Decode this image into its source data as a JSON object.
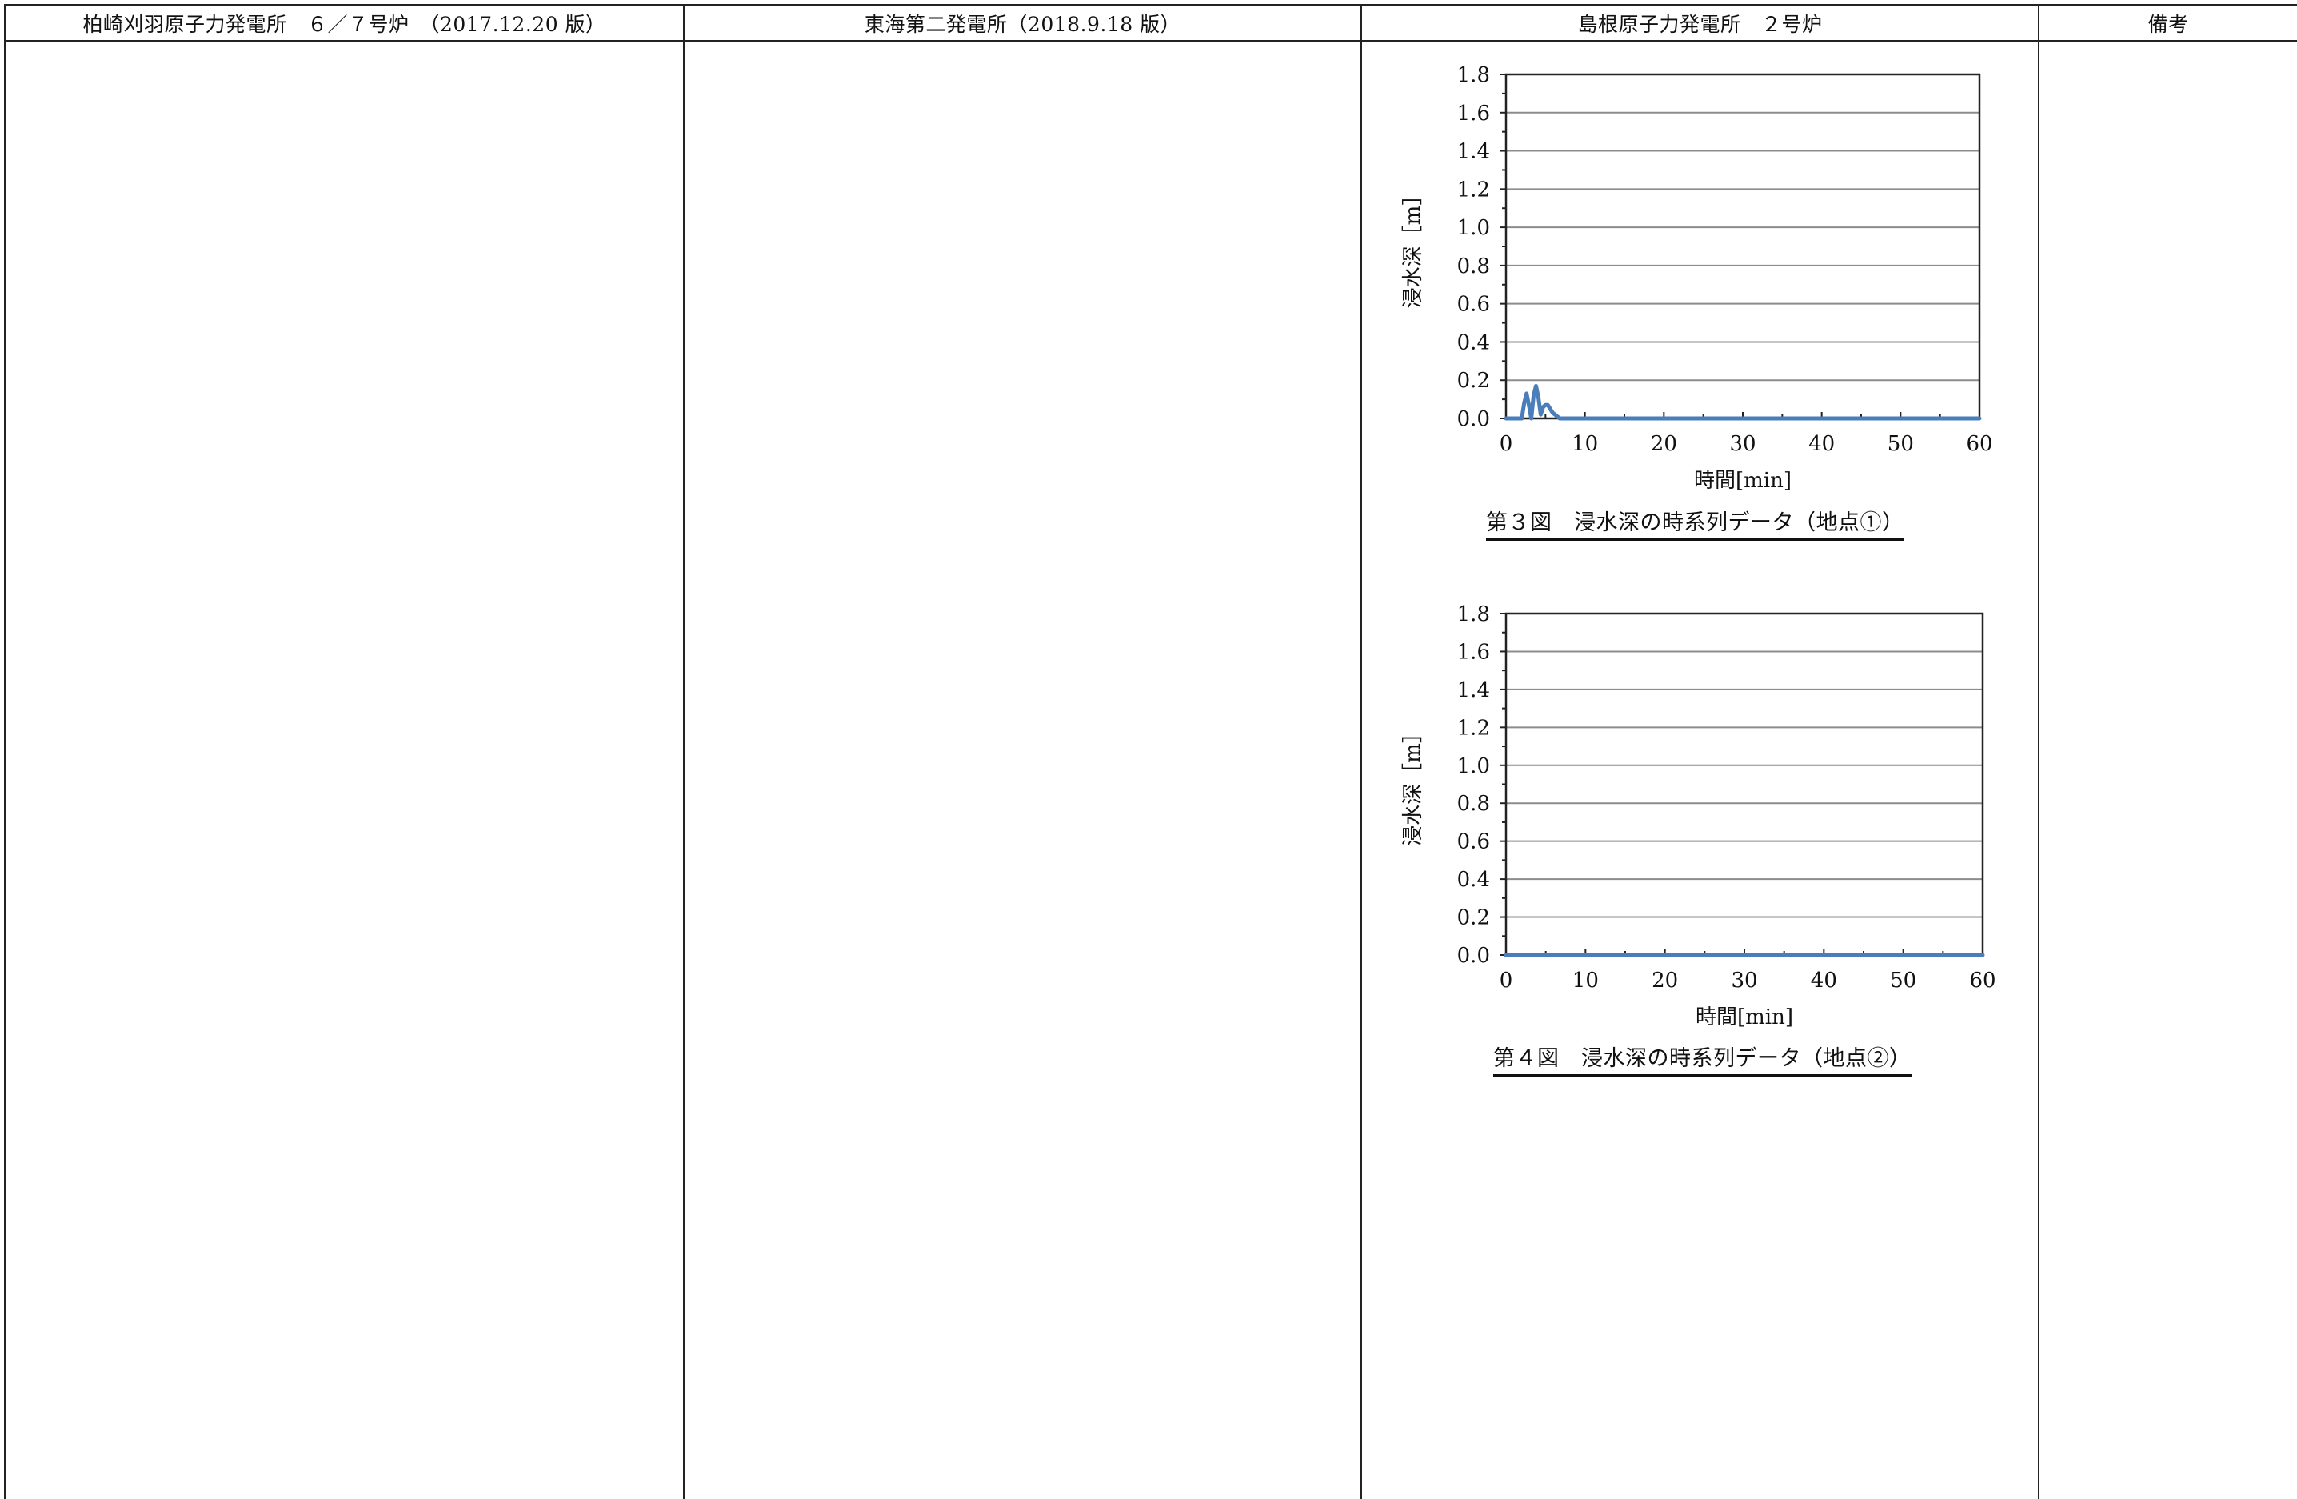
{
  "header": {
    "col1": "柏崎刈羽原子力発電所　６／７号炉　（2017.12.20 版）",
    "col2": "東海第二発電所（2018.9.18 版）",
    "col3": "島根原子力発電所　２号炉",
    "col4": "備考"
  },
  "colors": {
    "line": "#222222",
    "series": "#4a7ebb",
    "grid": "#8c8c8c"
  },
  "chart_data": [
    {
      "type": "line",
      "title": "",
      "xlabel": "時間[min]",
      "ylabel": "浸水深［m］",
      "xlim": [
        0,
        60
      ],
      "ylim": [
        0,
        1.8
      ],
      "xticks": [
        "0",
        "10",
        "20",
        "30",
        "40",
        "50",
        "60"
      ],
      "yticks": [
        "0.0",
        "0.2",
        "0.4",
        "0.6",
        "0.8",
        "1.0",
        "1.2",
        "1.4",
        "1.6",
        "1.8"
      ],
      "grid": true,
      "legend": "none",
      "caption": "第３図　浸水深の時系列データ（地点①）",
      "series": [
        {
          "x": [
            0,
            2.0,
            2.3,
            2.6,
            2.9,
            3.2,
            3.5,
            3.8,
            4.1,
            4.4,
            4.7,
            5.0,
            5.3,
            5.6,
            5.9,
            6.2,
            6.5,
            6.8,
            7.2,
            8.0,
            60
          ],
          "y": [
            0,
            0,
            0.08,
            0.13,
            0.07,
            0.0,
            0.12,
            0.17,
            0.11,
            0.02,
            0.06,
            0.07,
            0.07,
            0.05,
            0.03,
            0.02,
            0.01,
            0.0,
            0.0,
            0.0,
            0
          ]
        }
      ]
    },
    {
      "type": "line",
      "title": "",
      "xlabel": "時間[min]",
      "ylabel": "浸水深［m］",
      "xlim": [
        0,
        60
      ],
      "ylim": [
        0,
        1.8
      ],
      "xticks": [
        "0",
        "10",
        "20",
        "30",
        "40",
        "50",
        "60"
      ],
      "yticks": [
        "0.0",
        "0.2",
        "0.4",
        "0.6",
        "0.8",
        "1.0",
        "1.2",
        "1.4",
        "1.6",
        "1.8"
      ],
      "grid": true,
      "legend": "none",
      "caption": "第４図　浸水深の時系列データ（地点②）",
      "series": [
        {
          "x": [
            0,
            60
          ],
          "y": [
            0,
            0
          ]
        }
      ]
    }
  ]
}
